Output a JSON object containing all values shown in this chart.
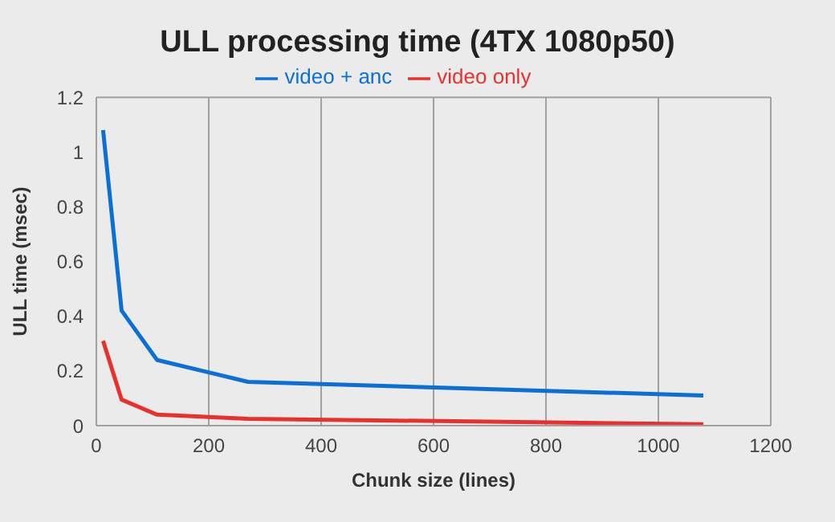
{
  "chart_data": {
    "type": "line",
    "title": "ULL processing time (4TX 1080p50)",
    "xlabel": "Chunk size (lines)",
    "ylabel": "ULL time (msec)",
    "x": [
      12,
      45,
      108,
      270,
      1080
    ],
    "series": [
      {
        "name": "video only",
        "color": "#e8312f",
        "values": [
          0.31,
          0.095,
          0.04,
          0.025,
          0.005
        ]
      },
      {
        "name": "video + anc",
        "color": "#0b6fd6",
        "values": [
          1.08,
          0.42,
          0.24,
          0.16,
          0.11
        ]
      }
    ],
    "xlim": [
      0,
      1200
    ],
    "xticks": [
      0,
      200,
      400,
      600,
      800,
      1000,
      1200
    ],
    "ylim": [
      0,
      1.2
    ],
    "yticks": [
      0,
      0.2,
      0.4,
      0.6,
      0.8,
      1,
      1.2
    ],
    "grid": true,
    "legend": "top",
    "marker": "none",
    "line_style": "solid"
  }
}
